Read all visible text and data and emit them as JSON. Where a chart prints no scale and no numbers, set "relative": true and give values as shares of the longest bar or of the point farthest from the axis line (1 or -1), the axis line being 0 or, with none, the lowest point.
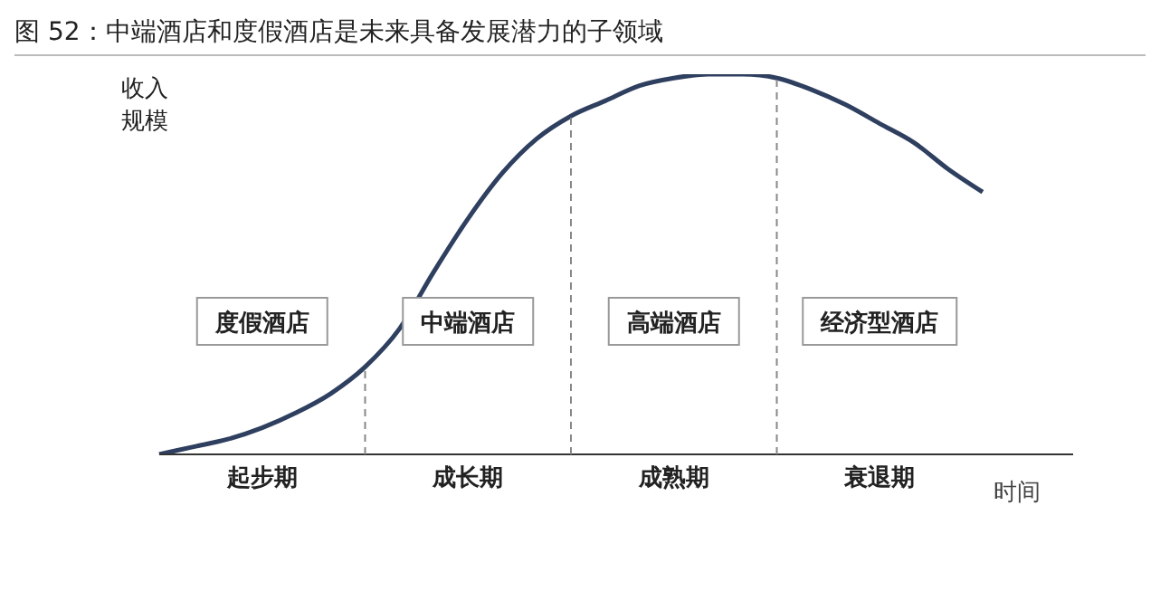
{
  "chart_data": {
    "type": "line",
    "title": "图 52：中端酒店和度假酒店是未来具备发展潜力的子领域",
    "ylabel": "收入规模",
    "xlabel": "时间",
    "relative": true,
    "color": "#2e3f5f",
    "categories": [
      null,
      null,
      null,
      "起步期",
      null,
      null,
      null,
      null,
      null,
      "成长期",
      null,
      null,
      null,
      null,
      null,
      "成熟期",
      null,
      null,
      null,
      null,
      null,
      "衰退期",
      null,
      null,
      null
    ],
    "values": [
      0,
      0.02,
      0.04,
      0.07,
      0.11,
      0.16,
      0.23,
      0.33,
      0.48,
      0.62,
      0.74,
      0.83,
      0.89,
      0.93,
      0.97,
      0.99,
      1,
      1,
      0.99,
      0.96,
      0.92,
      0.87,
      0.82,
      0.75,
      0.69
    ],
    "annotations": [
      "度假酒店",
      "中端酒店",
      "高端酒店",
      "经济型酒店"
    ],
    "grid": "x",
    "legend": false,
    "marker": "none",
    "line_style": "solid"
  }
}
